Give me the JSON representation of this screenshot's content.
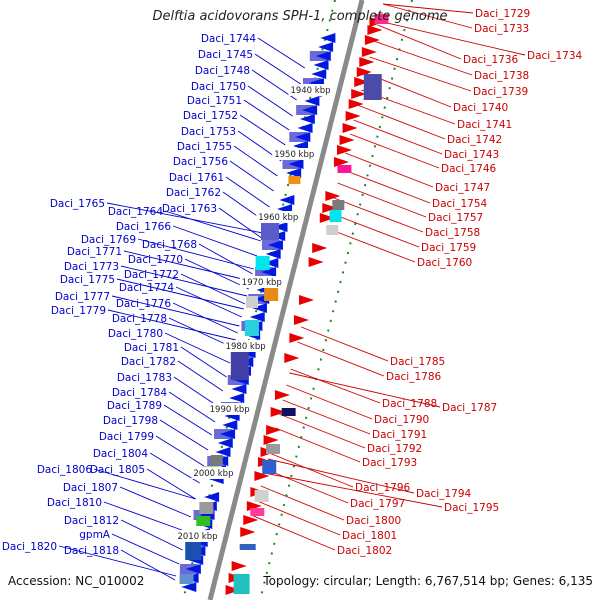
{
  "title": "Delftia acidovorans SPH-1, complete genome",
  "accession": "Accession: NC_010002",
  "topology": "Topology: circular; Length: 6,767,514 bp; Genes: 6,135",
  "colors": {
    "left_label": "#0000cc",
    "right_label": "#cc0000",
    "backbone": "#888888",
    "tick": "#1a8a1a",
    "left_arrow": "#0018e0",
    "right_arrow": "#e80000"
  },
  "kbp_labels": [
    "1940 kbp",
    "1950 kbp",
    "1960 kbp",
    "1970 kbp",
    "1980 kbp",
    "1990 kbp",
    "2000 kbp",
    "2010 kbp"
  ],
  "left_genes": [
    "Daci_1744",
    "Daci_1745",
    "Daci_1748",
    "Daci_1750",
    "Daci_1751",
    "Daci_1752",
    "Daci_1753",
    "Daci_1755",
    "Daci_1756",
    "Daci_1761",
    "Daci_1762",
    "Daci_1763",
    "Daci_1765",
    "Daci_1764",
    "Daci_1766",
    "Daci_1769",
    "Daci_1768",
    "Daci_1771",
    "Daci_1770",
    "Daci_1773",
    "Daci_1772",
    "Daci_1775",
    "Daci_1774",
    "Daci_1777",
    "Daci_1776",
    "Daci_1779",
    "Daci_1778",
    "Daci_1780",
    "Daci_1781",
    "Daci_1782",
    "Daci_1783",
    "Daci_1784",
    "Daci_1789",
    "Daci_1798",
    "Daci_1799",
    "Daci_1804",
    "Daci_1806",
    "Daci_1805",
    "Daci_1807",
    "Daci_1810",
    "Daci_1812",
    "gpmA",
    "Daci_1820",
    "Daci_1818"
  ],
  "right_genes": [
    "Daci_1729",
    "Daci_1733",
    "Daci_1734",
    "Daci_1736",
    "Daci_1738",
    "Daci_1739",
    "Daci_1740",
    "Daci_1741",
    "Daci_1742",
    "Daci_1743",
    "Daci_1746",
    "Daci_1747",
    "Daci_1754",
    "Daci_1757",
    "Daci_1758",
    "Daci_1759",
    "Daci_1760",
    "Daci_1785",
    "Daci_1786",
    "Daci_1788",
    "Daci_1787",
    "Daci_1790",
    "Daci_1791",
    "Daci_1792",
    "Daci_1793",
    "Daci_1796",
    "Daci_1794",
    "Daci_1797",
    "Daci_1795",
    "Daci_1800",
    "Daci_1801",
    "Daci_1802"
  ]
}
